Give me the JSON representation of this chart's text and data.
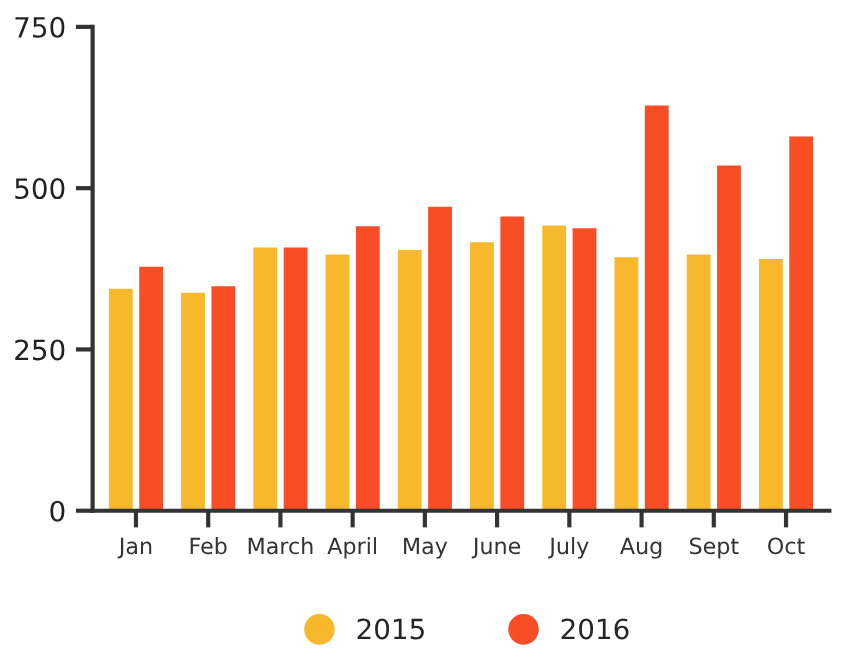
{
  "chart_data": {
    "type": "bar",
    "categories": [
      "Jan",
      "Feb",
      "March",
      "April",
      "May",
      "June",
      "July",
      "Aug",
      "Sept",
      "Oct"
    ],
    "series": [
      {
        "name": "2015",
        "color": "#f7b92b",
        "values": [
          344,
          338,
          408,
          397,
          404,
          416,
          442,
          393,
          397,
          390
        ]
      },
      {
        "name": "2016",
        "color": "#f94d26",
        "values": [
          378,
          348,
          408,
          441,
          471,
          456,
          438,
          628,
          535,
          580
        ]
      }
    ],
    "ylim": [
      0,
      750
    ],
    "yticks": [
      0,
      250,
      500,
      750
    ],
    "grid": false,
    "legend": "bottom"
  }
}
